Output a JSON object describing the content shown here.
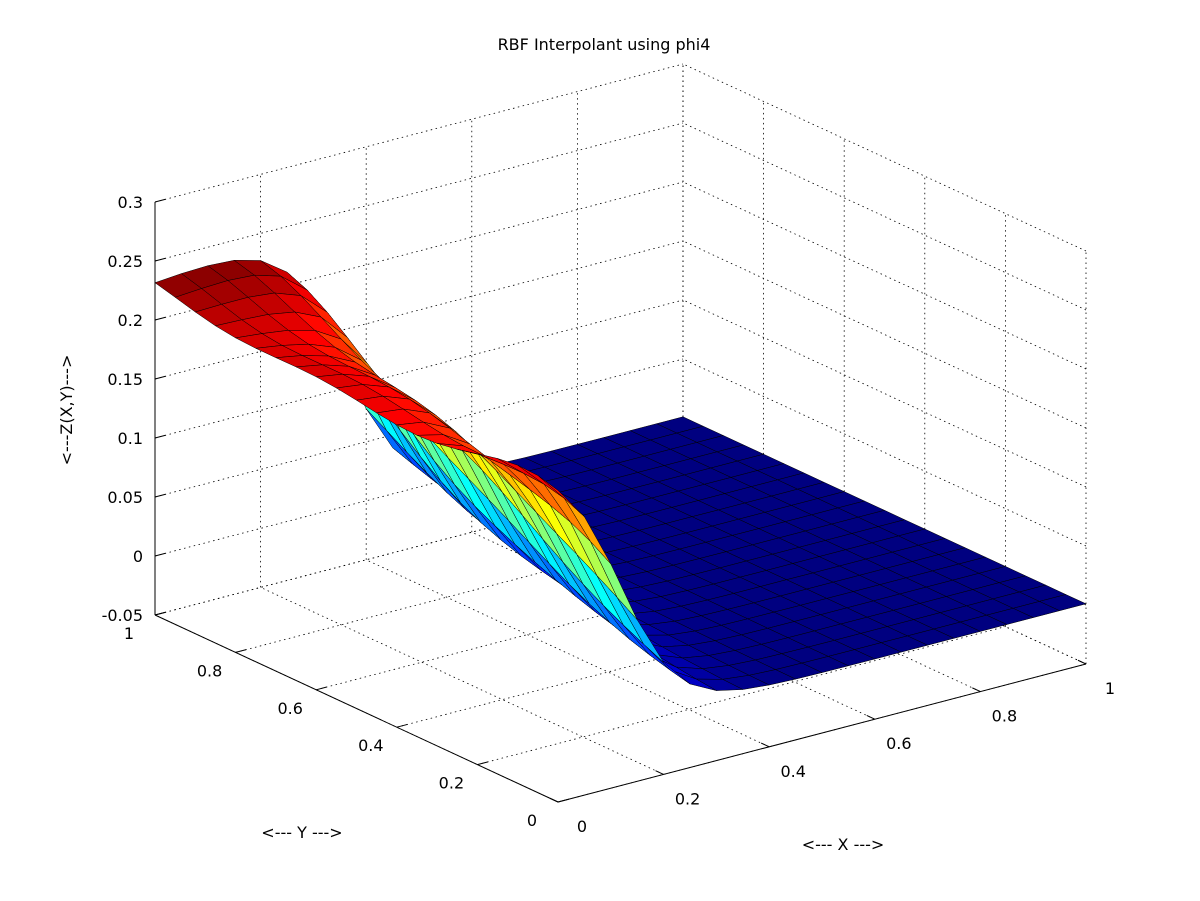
{
  "chart_data": {
    "type": "surface3d",
    "title": "RBF Interpolant using phi4",
    "xlabel": "<--- X --->",
    "ylabel": "<--- Y --->",
    "zlabel": "<---Z(X,Y)--->",
    "xlim": [
      0,
      1
    ],
    "ylim": [
      0,
      1
    ],
    "zlim": [
      -0.05,
      0.3
    ],
    "xticks": [
      0,
      0.2,
      0.4,
      0.6,
      0.8,
      1
    ],
    "yticks": [
      0,
      0.2,
      0.4,
      0.6,
      0.8,
      1
    ],
    "zticks": [
      -0.05,
      0,
      0.05,
      0.1,
      0.15,
      0.2,
      0.25,
      0.3
    ],
    "xtick_labels": [
      "0",
      "0.2",
      "0.4",
      "0.6",
      "0.8",
      "1"
    ],
    "ytick_labels": [
      "0",
      "0.2",
      "0.4",
      "0.6",
      "0.8",
      "1"
    ],
    "ztick_labels": [
      "-0.05",
      "0",
      "0.05",
      "0.1",
      "0.15",
      "0.2",
      "0.25",
      "0.3"
    ],
    "grid": true,
    "colormap": "jet",
    "grid_x": [
      0,
      0.05,
      0.1,
      0.15,
      0.2,
      0.25,
      0.3,
      0.35,
      0.4,
      0.45,
      0.5,
      0.55,
      0.6,
      0.65,
      0.7,
      0.75,
      0.8,
      0.85,
      0.9,
      0.95,
      1
    ],
    "grid_y": [
      0,
      0.05,
      0.1,
      0.15,
      0.2,
      0.25,
      0.3,
      0.35,
      0.4,
      0.45,
      0.5,
      0.55,
      0.6,
      0.65,
      0.7,
      0.75,
      0.8,
      0.85,
      0.9,
      0.95,
      1
    ],
    "surface_profile": {
      "description": "sigmoid step along X",
      "plateau_low": 0.001,
      "plateau_high": 0.22,
      "step_center_x": [
        0.12,
        0.24,
        0.36
      ],
      "step_width": 0.055
    }
  },
  "colors": {
    "background": "#ffffff",
    "axis": "#000000",
    "grid": "#000000",
    "edge": "#000000"
  }
}
